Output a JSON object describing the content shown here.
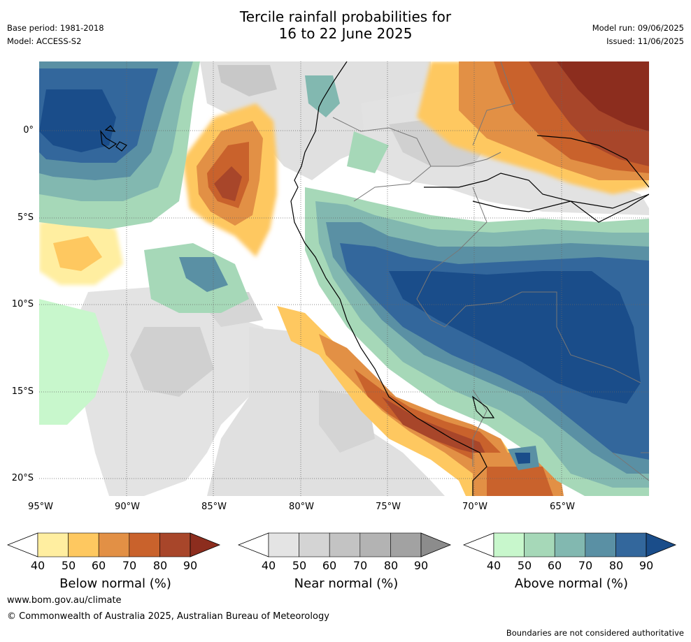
{
  "title_line1": "Tercile rainfall probabilities for",
  "title_line2": "16 to 22 June 2025",
  "base_period": "Base period: 1981-2018",
  "model": "Model: ACCESS-S2",
  "model_run": "Model run: 09/06/2025",
  "issued": "Issued: 11/06/2025",
  "map": {
    "lat_labels": [
      "0°",
      "5°S",
      "10°S",
      "15°S",
      "20°S"
    ],
    "lon_labels": [
      "95°W",
      "90°W",
      "85°W",
      "80°W",
      "75°W",
      "70°W",
      "65°W"
    ]
  },
  "colorbars": [
    {
      "title": "Below normal (%)",
      "ticks": [
        "40",
        "50",
        "60",
        "70",
        "80",
        "90"
      ],
      "colors": [
        "#ffeea0",
        "#fec860",
        "#e29045",
        "#c9622c",
        "#a8462a",
        "#8c2d1e"
      ]
    },
    {
      "title": "Near normal (%)",
      "ticks": [
        "40",
        "50",
        "60",
        "70",
        "80",
        "90"
      ],
      "colors": [
        "#e4e4e4",
        "#d4d4d4",
        "#c3c3c3",
        "#b3b3b3",
        "#a2a2a2",
        "#8c8c8c"
      ]
    },
    {
      "title": "Above normal (%)",
      "ticks": [
        "40",
        "50",
        "60",
        "70",
        "80",
        "90"
      ],
      "colors": [
        "#c8f7cc",
        "#a6d8b8",
        "#82b8b0",
        "#5a90a4",
        "#33679c",
        "#1a4d8a"
      ]
    }
  ],
  "footer": {
    "url": "www.bom.gov.au/climate",
    "copyright": "© Commonwealth of Australia 2025, Australian Bureau of Meteorology",
    "disclaimer": "Boundaries are not considered authoritative"
  }
}
